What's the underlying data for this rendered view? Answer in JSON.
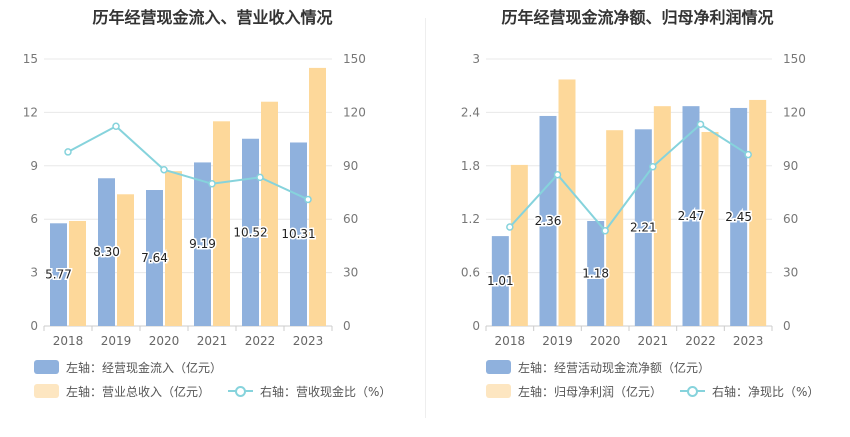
{
  "chart_data": [
    {
      "type": "bar",
      "title": "历年经营现金流入、营业收入情况",
      "categories": [
        "2018",
        "2019",
        "2020",
        "2021",
        "2022",
        "2023"
      ],
      "left_axis": {
        "ticks": [
          "0",
          "3",
          "6",
          "9",
          "12",
          "15"
        ],
        "ylim": [
          0,
          15
        ]
      },
      "right_axis": {
        "ticks": [
          "0",
          "30",
          "60",
          "90",
          "120",
          "150"
        ],
        "ylim": [
          0,
          150
        ]
      },
      "series": [
        {
          "name": "左轴：经营现金流入（亿元）",
          "type": "bar",
          "axis": "left",
          "color": "#8fb1dd",
          "values": [
            5.77,
            8.3,
            7.64,
            9.19,
            10.52,
            10.31
          ],
          "labels": [
            "5.77",
            "8.30",
            "7.64",
            "9.19",
            "10.52",
            "10.31"
          ]
        },
        {
          "name": "左轴：营业总收入（亿元）",
          "type": "bar",
          "axis": "left",
          "color": "#fdd89a",
          "values": [
            5.9,
            7.4,
            8.7,
            11.5,
            12.6,
            14.5
          ]
        },
        {
          "name": "右轴：营收现金比（%）",
          "type": "line",
          "axis": "right",
          "color": "#86d3dc",
          "values": [
            97.8,
            112.2,
            87.8,
            79.9,
            83.5,
            71.1
          ]
        }
      ],
      "grid": true,
      "legend_position": "bottom"
    },
    {
      "type": "bar",
      "title": "历年经营现金流净额、归母净利润情况",
      "categories": [
        "2018",
        "2019",
        "2020",
        "2021",
        "2022",
        "2023"
      ],
      "left_axis": {
        "ticks": [
          "0",
          "0.6",
          "1.2",
          "1.8",
          "2.4",
          "3"
        ],
        "ylim": [
          0,
          3
        ]
      },
      "right_axis": {
        "ticks": [
          "0",
          "30",
          "60",
          "90",
          "120",
          "150"
        ],
        "ylim": [
          0,
          150
        ]
      },
      "series": [
        {
          "name": "左轴：经营活动现金流净额（亿元）",
          "type": "bar",
          "axis": "left",
          "color": "#8fb1dd",
          "values": [
            1.01,
            2.36,
            1.18,
            2.21,
            2.47,
            2.45
          ],
          "labels": [
            "1.01",
            "2.36",
            "1.18",
            "2.21",
            "2.47",
            "2.45"
          ]
        },
        {
          "name": "左轴：归母净利润（亿元）",
          "type": "bar",
          "axis": "left",
          "color": "#fdd89a",
          "values": [
            1.81,
            2.77,
            2.2,
            2.47,
            2.18,
            2.54
          ]
        },
        {
          "name": "右轴：净现比（%）",
          "type": "line",
          "axis": "right",
          "color": "#86d3dc",
          "values": [
            55.6,
            85.0,
            53.5,
            89.5,
            113.3,
            96.3
          ]
        }
      ],
      "grid": true,
      "legend_position": "bottom"
    }
  ]
}
